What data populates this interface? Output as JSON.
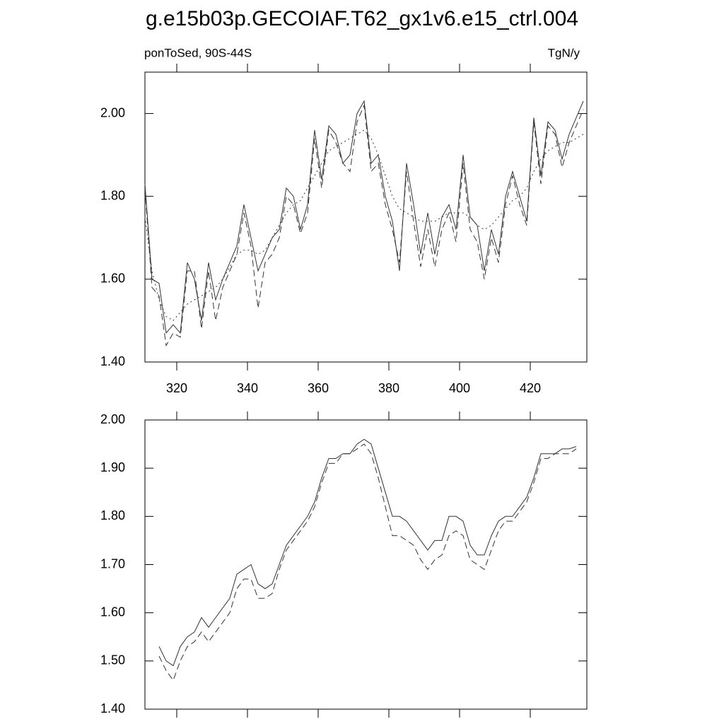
{
  "chart_data": [
    {
      "type": "line",
      "title": "g.e15b03p.GECOIAF.T62_gx1v6.e15_ctrl.004",
      "left_label": "ponToSed, 90S-44S",
      "right_label": "TgN/y",
      "x": [
        311,
        313,
        315,
        317,
        319,
        321,
        323,
        325,
        327,
        329,
        331,
        333,
        335,
        337,
        339,
        341,
        343,
        345,
        347,
        349,
        351,
        353,
        355,
        357,
        359,
        361,
        363,
        365,
        367,
        369,
        371,
        373,
        375,
        377,
        379,
        381,
        383,
        385,
        387,
        389,
        391,
        393,
        395,
        397,
        399,
        401,
        403,
        405,
        407,
        409,
        411,
        413,
        415,
        417,
        419,
        421,
        423,
        425,
        427,
        429,
        431,
        433,
        435
      ],
      "series": [
        {
          "color": "#333333",
          "dash": "solid",
          "values": [
            1.83,
            1.6,
            1.59,
            1.47,
            1.49,
            1.47,
            1.64,
            1.6,
            1.5,
            1.64,
            1.55,
            1.6,
            1.64,
            1.68,
            1.78,
            1.7,
            1.62,
            1.66,
            1.7,
            1.72,
            1.82,
            1.8,
            1.72,
            1.78,
            1.96,
            1.84,
            1.97,
            1.95,
            1.88,
            1.9,
            2.0,
            2.03,
            1.88,
            1.9,
            1.8,
            1.74,
            1.62,
            1.88,
            1.78,
            1.66,
            1.76,
            1.66,
            1.75,
            1.78,
            1.72,
            1.9,
            1.75,
            1.73,
            1.62,
            1.72,
            1.66,
            1.8,
            1.86,
            1.8,
            1.74,
            1.99,
            1.85,
            1.98,
            1.96,
            1.89,
            1.95,
            1.99,
            2.03
          ]
        },
        {
          "color": "#333333",
          "dash": "dashed",
          "values": [
            1.82,
            1.58,
            1.56,
            1.44,
            1.47,
            1.46,
            1.62,
            1.62,
            1.48,
            1.62,
            1.5,
            1.58,
            1.62,
            1.66,
            1.76,
            1.68,
            1.53,
            1.64,
            1.66,
            1.7,
            1.8,
            1.78,
            1.71,
            1.76,
            1.94,
            1.82,
            1.96,
            1.93,
            1.88,
            1.86,
            1.98,
            2.02,
            1.86,
            1.88,
            1.78,
            1.72,
            1.64,
            1.86,
            1.74,
            1.63,
            1.72,
            1.63,
            1.72,
            1.76,
            1.69,
            1.88,
            1.72,
            1.69,
            1.6,
            1.7,
            1.64,
            1.78,
            1.85,
            1.78,
            1.73,
            1.98,
            1.83,
            1.97,
            1.95,
            1.87,
            1.93,
            1.97,
            2.01
          ]
        },
        {
          "color": "#333333",
          "dash": "dotted",
          "values": [
            1.75,
            1.62,
            1.55,
            1.51,
            1.5,
            1.52,
            1.54,
            1.55,
            1.56,
            1.57,
            1.58,
            1.6,
            1.63,
            1.66,
            1.67,
            1.67,
            1.66,
            1.67,
            1.7,
            1.73,
            1.76,
            1.78,
            1.79,
            1.82,
            1.85,
            1.88,
            1.91,
            1.92,
            1.93,
            1.94,
            1.95,
            1.96,
            1.94,
            1.9,
            1.85,
            1.8,
            1.77,
            1.76,
            1.75,
            1.74,
            1.74,
            1.74,
            1.75,
            1.76,
            1.76,
            1.76,
            1.75,
            1.73,
            1.72,
            1.73,
            1.75,
            1.77,
            1.79,
            1.8,
            1.82,
            1.86,
            1.89,
            1.91,
            1.92,
            1.93,
            1.93,
            1.94,
            1.95
          ]
        }
      ],
      "xlim": [
        311,
        436
      ],
      "xticks": [
        320,
        340,
        360,
        380,
        400,
        420
      ],
      "ylim": [
        1.4,
        2.1
      ],
      "yticks": [
        {
          "value": 1.4,
          "label": "1.40"
        },
        {
          "value": 1.6,
          "label": "1.60"
        },
        {
          "value": 1.8,
          "label": "1.80"
        },
        {
          "value": 2.0,
          "label": "2.00"
        }
      ]
    },
    {
      "type": "line",
      "x": [
        315,
        317,
        319,
        321,
        323,
        325,
        327,
        329,
        331,
        333,
        335,
        337,
        339,
        341,
        343,
        345,
        347,
        349,
        351,
        353,
        355,
        357,
        359,
        361,
        363,
        365,
        367,
        369,
        371,
        373,
        375,
        377,
        379,
        381,
        383,
        385,
        387,
        389,
        391,
        393,
        395,
        397,
        399,
        401,
        403,
        405,
        407,
        409,
        411,
        413,
        415,
        417,
        419,
        421,
        423,
        425,
        427,
        429,
        431,
        433
      ],
      "series": [
        {
          "color": "#333333",
          "dash": "solid",
          "values": [
            1.53,
            1.5,
            1.49,
            1.53,
            1.55,
            1.56,
            1.59,
            1.57,
            1.59,
            1.61,
            1.63,
            1.68,
            1.69,
            1.7,
            1.66,
            1.65,
            1.66,
            1.7,
            1.74,
            1.76,
            1.78,
            1.8,
            1.83,
            1.88,
            1.92,
            1.92,
            1.93,
            1.93,
            1.95,
            1.96,
            1.95,
            1.9,
            1.85,
            1.8,
            1.8,
            1.79,
            1.77,
            1.75,
            1.73,
            1.75,
            1.75,
            1.8,
            1.8,
            1.79,
            1.74,
            1.72,
            1.72,
            1.76,
            1.79,
            1.8,
            1.8,
            1.82,
            1.84,
            1.88,
            1.93,
            1.93,
            1.93,
            1.94,
            1.94,
            1.945
          ]
        },
        {
          "color": "#333333",
          "dash": "dashed",
          "values": [
            1.51,
            1.48,
            1.46,
            1.5,
            1.53,
            1.54,
            1.56,
            1.54,
            1.56,
            1.58,
            1.6,
            1.65,
            1.67,
            1.67,
            1.63,
            1.63,
            1.64,
            1.69,
            1.73,
            1.75,
            1.77,
            1.79,
            1.82,
            1.87,
            1.91,
            1.91,
            1.93,
            1.93,
            1.94,
            1.95,
            1.93,
            1.88,
            1.82,
            1.76,
            1.76,
            1.75,
            1.74,
            1.71,
            1.69,
            1.71,
            1.72,
            1.76,
            1.77,
            1.76,
            1.71,
            1.7,
            1.69,
            1.73,
            1.77,
            1.79,
            1.79,
            1.81,
            1.83,
            1.87,
            1.92,
            1.92,
            1.93,
            1.93,
            1.93,
            1.94
          ]
        }
      ],
      "xlim": [
        311,
        436
      ],
      "xticks": [
        320,
        340,
        360,
        380,
        400,
        420
      ],
      "ylim": [
        1.4,
        2.0
      ],
      "yticks": [
        {
          "value": 1.4,
          "label": "1.40"
        },
        {
          "value": 1.5,
          "label": "1.50"
        },
        {
          "value": 1.6,
          "label": "1.60"
        },
        {
          "value": 1.7,
          "label": "1.70"
        },
        {
          "value": 1.8,
          "label": "1.80"
        },
        {
          "value": 1.9,
          "label": "1.90"
        },
        {
          "value": 2.0,
          "label": "2.00"
        }
      ]
    }
  ]
}
